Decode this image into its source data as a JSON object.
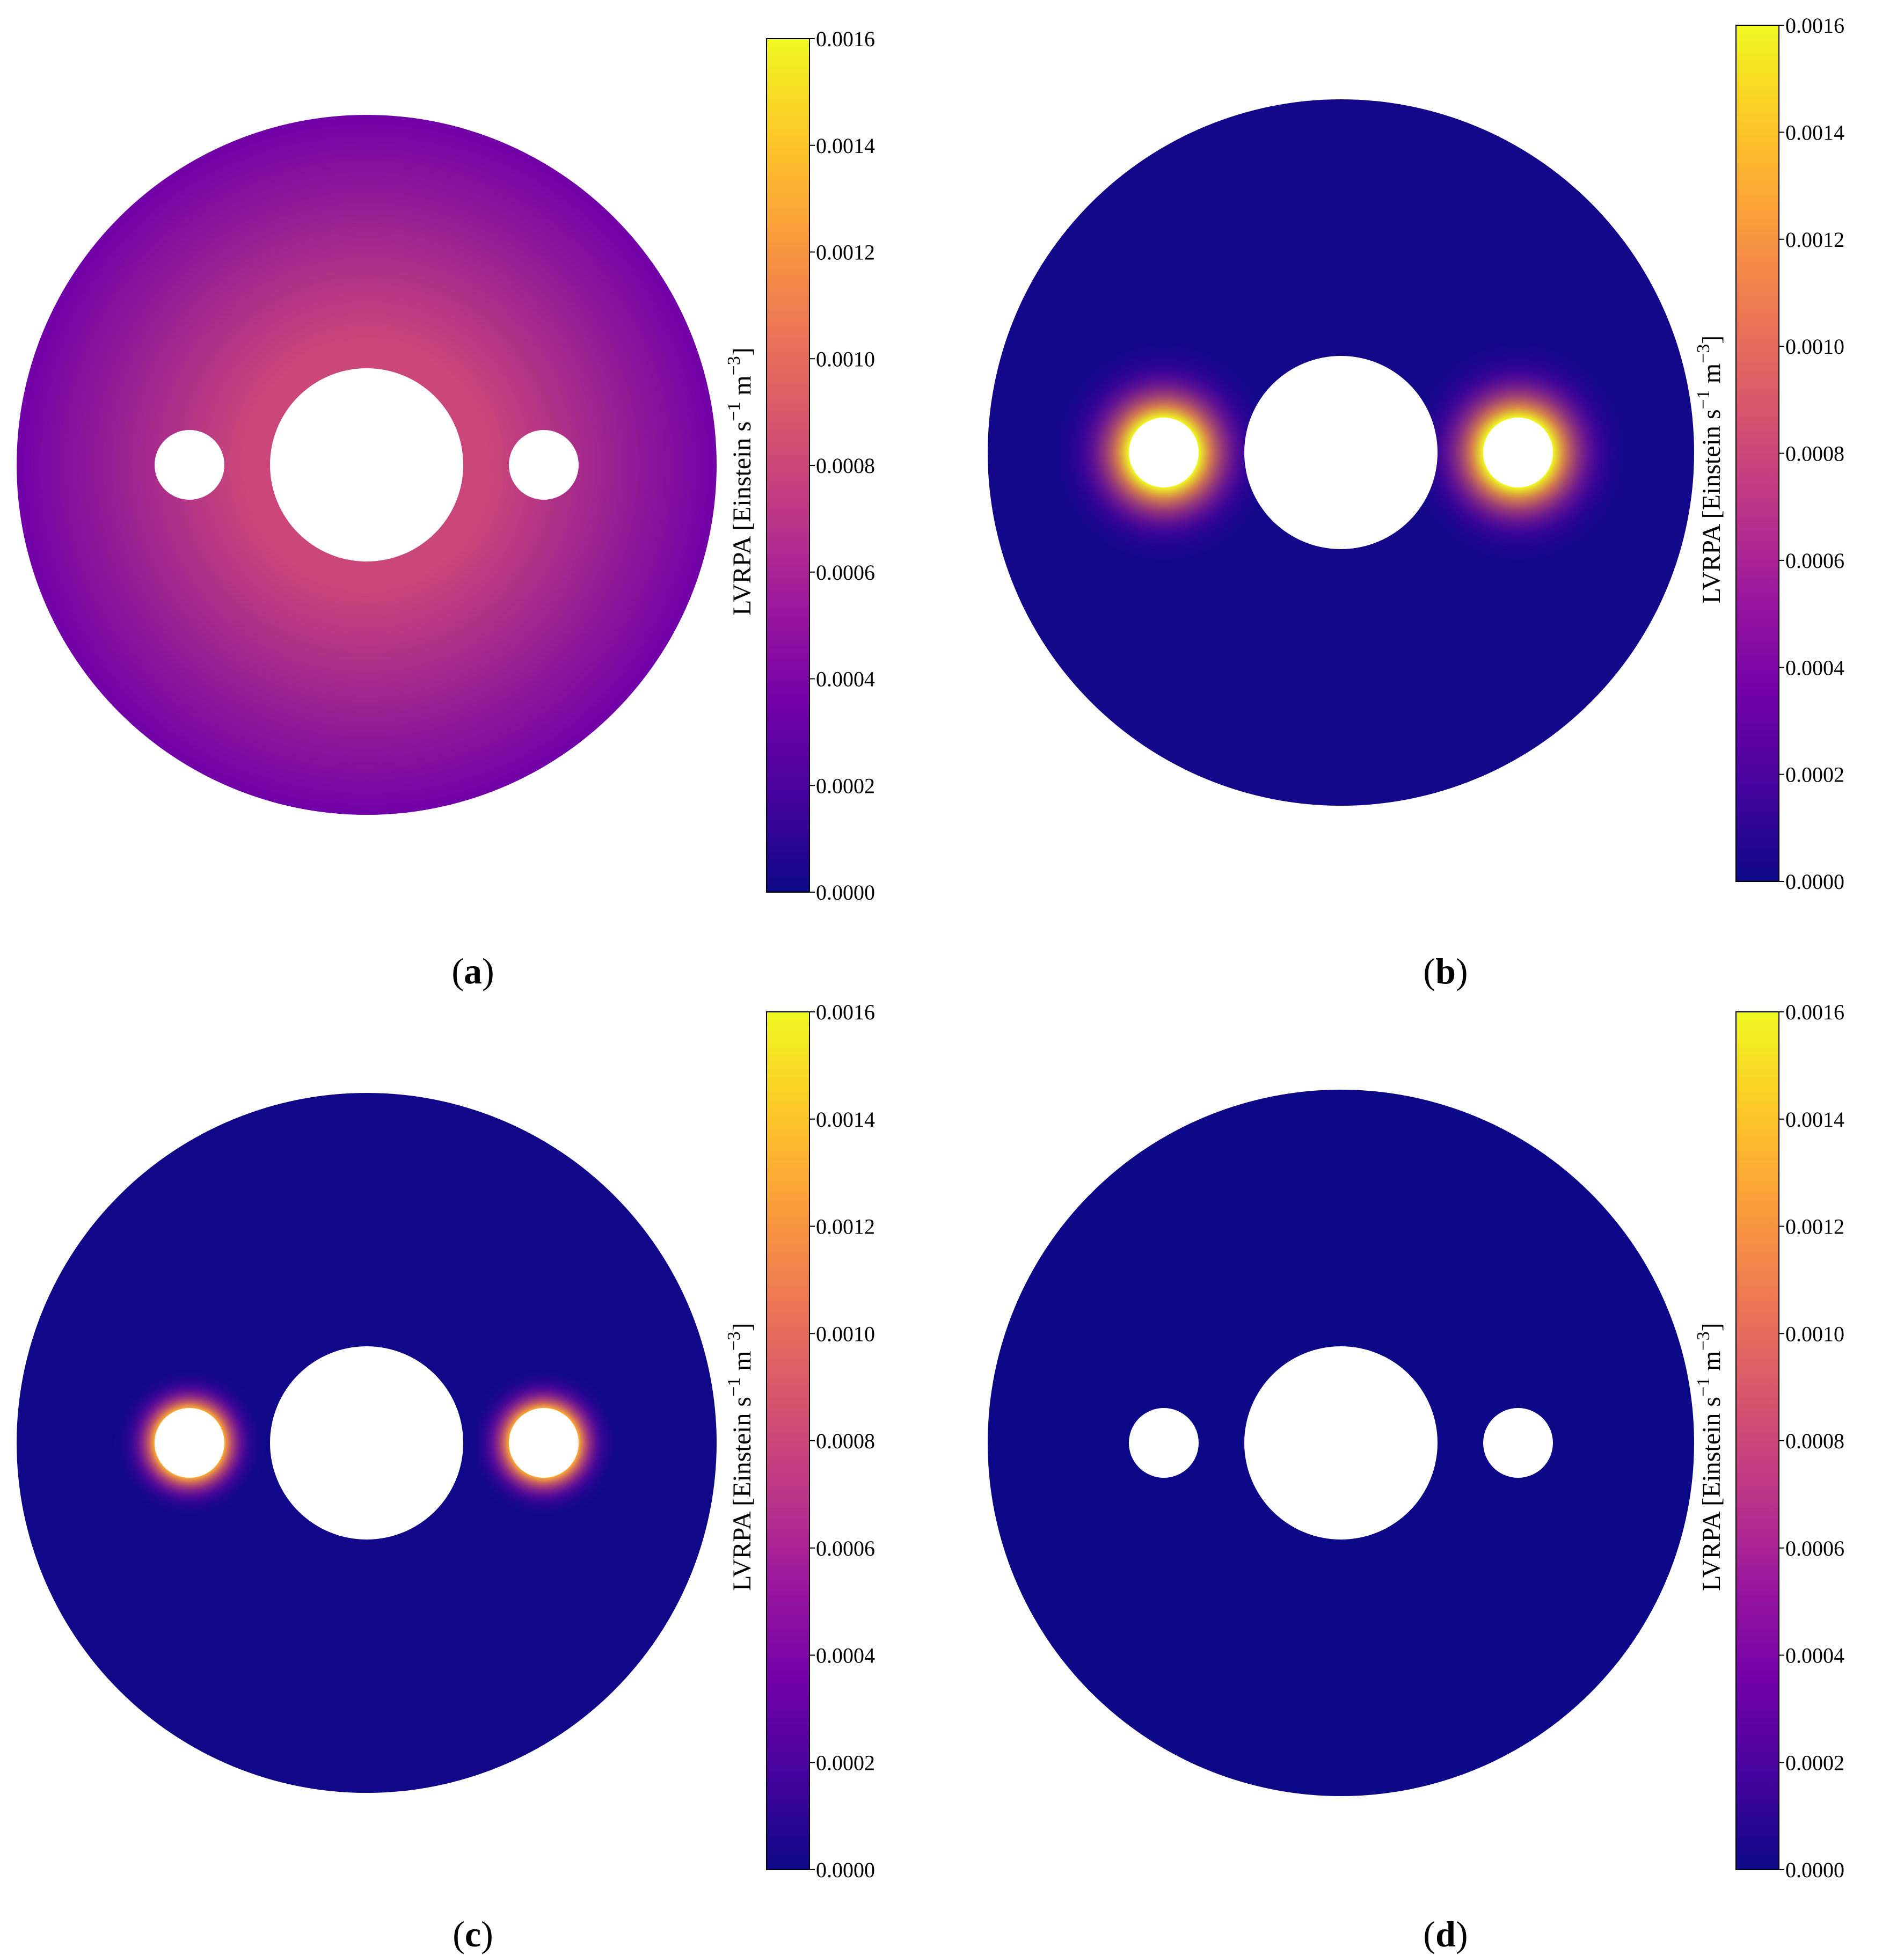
{
  "colormap": {
    "name": "plasma",
    "stops": [
      "#0d0887",
      "#46039f",
      "#7201a8",
      "#9c179e",
      "#bd3786",
      "#d8576b",
      "#ed7953",
      "#fb9f3a",
      "#fdca26",
      "#f0f921"
    ]
  },
  "chart_data": [
    {
      "type": "heatmap",
      "panel": "a",
      "caption_letter": "a",
      "colorbar": {
        "label_main": "LVRPA [Einstein s",
        "label_sup1": "−1",
        "label_mid": " m",
        "label_sup2": "−3",
        "label_end": "]",
        "range": [
          0,
          0.0016
        ],
        "ticks": [
          "0.0000",
          "0.0002",
          "0.0004",
          "0.0006",
          "0.0008",
          "0.0010",
          "0.0012",
          "0.0014",
          "0.0016"
        ]
      },
      "field": {
        "background_value": 0.00035,
        "center_value": 0.0008,
        "lamp_peak": 0.00075,
        "lamp_glow_spread": 0.0
      }
    },
    {
      "type": "heatmap",
      "panel": "b",
      "caption_letter": "b",
      "colorbar": {
        "label_main": "LVRPA [Einstein s",
        "label_sup1": "−1",
        "label_mid": " m",
        "label_sup2": "−3",
        "label_end": "]",
        "range": [
          0,
          0.0016
        ],
        "ticks": [
          "0.0000",
          "0.0002",
          "0.0004",
          "0.0006",
          "0.0008",
          "0.0010",
          "0.0012",
          "0.0014",
          "0.0016"
        ]
      },
      "field": {
        "background_value": 2e-05,
        "center_value": 2e-05,
        "lamp_peak": 0.0016,
        "lamp_glow_spread": 1.0
      }
    },
    {
      "type": "heatmap",
      "panel": "c",
      "caption_letter": "c",
      "colorbar": {
        "label_main": "LVRPA [Einstein s",
        "label_sup1": "−1",
        "label_mid": " m",
        "label_sup2": "−3",
        "label_end": "]",
        "range": [
          0,
          0.0016
        ],
        "ticks": [
          "0.0000",
          "0.0002",
          "0.0004",
          "0.0006",
          "0.0008",
          "0.0010",
          "0.0012",
          "0.0014",
          "0.0016"
        ]
      },
      "field": {
        "background_value": 1e-05,
        "center_value": 1e-05,
        "lamp_peak": 0.0013,
        "lamp_glow_spread": 0.45
      }
    },
    {
      "type": "heatmap",
      "panel": "d",
      "caption_letter": "d",
      "colorbar": {
        "label_main": "LVRPA [Einstein s",
        "label_sup1": "−1",
        "label_mid": " m",
        "label_sup2": "−3",
        "label_end": "]",
        "range": [
          0,
          0.0016
        ],
        "ticks": [
          "0.0000",
          "0.0002",
          "0.0004",
          "0.0006",
          "0.0008",
          "0.0010",
          "0.0012",
          "0.0014",
          "0.0016"
        ]
      },
      "field": {
        "background_value": 0.0,
        "center_value": 0.0,
        "lamp_peak": 0.0,
        "lamp_glow_spread": 0.0
      }
    }
  ]
}
